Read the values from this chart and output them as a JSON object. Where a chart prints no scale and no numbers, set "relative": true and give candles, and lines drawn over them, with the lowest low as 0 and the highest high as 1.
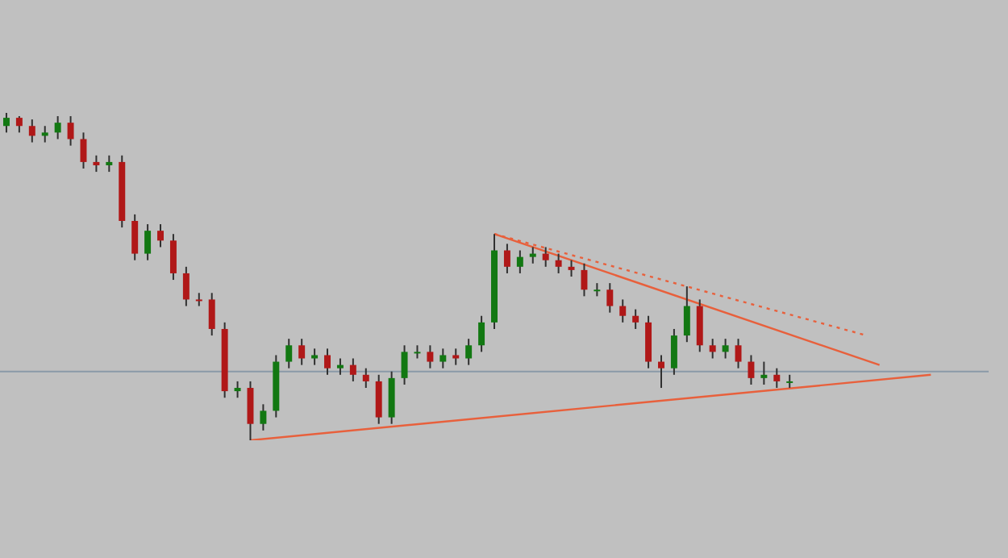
{
  "chart_data": {
    "type": "candlestick",
    "relative": true,
    "categories": [
      null,
      null,
      null,
      null,
      null,
      null,
      null,
      null,
      null,
      null,
      null,
      null,
      null,
      null,
      null,
      null,
      null,
      null,
      null,
      null,
      null,
      null,
      null,
      null,
      null,
      null,
      null,
      null,
      null,
      null,
      null,
      null,
      null,
      null,
      null,
      null,
      null,
      null,
      null,
      null,
      null,
      null,
      null,
      null,
      null,
      null,
      null,
      null,
      null,
      null,
      null,
      null,
      null,
      null,
      null,
      null,
      null,
      null,
      null,
      null,
      null,
      null,
      null,
      null,
      null,
      null,
      null,
      null,
      null,
      null,
      null,
      null,
      null,
      null,
      null,
      null,
      null
    ],
    "ohlc": [
      [
        0.96,
        1,
        0.94,
        0.985
      ],
      [
        0.985,
        0.99,
        0.94,
        0.96
      ],
      [
        0.96,
        0.98,
        0.91,
        0.93
      ],
      [
        0.93,
        0.96,
        0.91,
        0.94
      ],
      [
        0.94,
        0.99,
        0.92,
        0.97
      ],
      [
        0.97,
        0.99,
        0.9,
        0.92
      ],
      [
        0.92,
        0.94,
        0.83,
        0.85
      ],
      [
        0.85,
        0.87,
        0.82,
        0.84
      ],
      [
        0.84,
        0.87,
        0.82,
        0.85
      ],
      [
        0.85,
        0.87,
        0.65,
        0.67
      ],
      [
        0.67,
        0.69,
        0.55,
        0.57
      ],
      [
        0.57,
        0.66,
        0.55,
        0.64
      ],
      [
        0.64,
        0.66,
        0.59,
        0.61
      ],
      [
        0.61,
        0.63,
        0.49,
        0.51
      ],
      [
        0.51,
        0.53,
        0.41,
        0.43
      ],
      [
        0.43,
        0.45,
        0.41,
        0.43
      ],
      [
        0.43,
        0.45,
        0.32,
        0.34
      ],
      [
        0.34,
        0.36,
        0.13,
        0.15
      ],
      [
        0.15,
        0.18,
        0.13,
        0.16
      ],
      [
        0.16,
        0.18,
        0,
        0.05
      ],
      [
        0.05,
        0.11,
        0.03,
        0.09
      ],
      [
        0.09,
        0.26,
        0.07,
        0.24
      ],
      [
        0.24,
        0.31,
        0.22,
        0.29
      ],
      [
        0.29,
        0.31,
        0.23,
        0.25
      ],
      [
        0.25,
        0.28,
        0.23,
        0.26
      ],
      [
        0.26,
        0.28,
        0.2,
        0.22
      ],
      [
        0.22,
        0.25,
        0.2,
        0.23
      ],
      [
        0.23,
        0.25,
        0.18,
        0.2
      ],
      [
        0.2,
        0.22,
        0.16,
        0.18
      ],
      [
        0.18,
        0.2,
        0.05,
        0.07
      ],
      [
        0.07,
        0.21,
        0.05,
        0.19
      ],
      [
        0.19,
        0.29,
        0.17,
        0.27
      ],
      [
        0.27,
        0.29,
        0.25,
        0.27
      ],
      [
        0.27,
        0.29,
        0.22,
        0.24
      ],
      [
        0.24,
        0.28,
        0.22,
        0.26
      ],
      [
        0.26,
        0.28,
        0.23,
        0.25
      ],
      [
        0.25,
        0.31,
        0.23,
        0.29
      ],
      [
        0.29,
        0.38,
        0.27,
        0.36
      ],
      [
        0.36,
        0.63,
        0.34,
        0.58
      ],
      [
        0.58,
        0.6,
        0.51,
        0.53
      ],
      [
        0.53,
        0.58,
        0.51,
        0.56
      ],
      [
        0.56,
        0.59,
        0.54,
        0.57
      ],
      [
        0.57,
        0.59,
        0.53,
        0.55
      ],
      [
        0.55,
        0.57,
        0.51,
        0.53
      ],
      [
        0.53,
        0.55,
        0.5,
        0.52
      ],
      [
        0.52,
        0.54,
        0.44,
        0.46
      ],
      [
        0.46,
        0.48,
        0.44,
        0.46
      ],
      [
        0.46,
        0.48,
        0.39,
        0.41
      ],
      [
        0.41,
        0.43,
        0.36,
        0.38
      ],
      [
        0.38,
        0.4,
        0.34,
        0.36
      ],
      [
        0.36,
        0.38,
        0.22,
        0.24
      ],
      [
        0.24,
        0.26,
        0.16,
        0.22
      ],
      [
        0.22,
        0.34,
        0.2,
        0.32
      ],
      [
        0.32,
        0.47,
        0.3,
        0.41
      ],
      [
        0.41,
        0.43,
        0.27,
        0.29
      ],
      [
        0.29,
        0.31,
        0.25,
        0.27
      ],
      [
        0.27,
        0.31,
        0.25,
        0.29
      ],
      [
        0.29,
        0.31,
        0.22,
        0.24
      ],
      [
        0.24,
        0.26,
        0.17,
        0.19
      ],
      [
        0.19,
        0.24,
        0.17,
        0.2
      ],
      [
        0.2,
        0.22,
        0.16,
        0.18
      ],
      [
        0.18,
        0.2,
        0.16,
        0.18
      ],
      null,
      null,
      null,
      null,
      null,
      null,
      null,
      null,
      null,
      null,
      null,
      null,
      null,
      null,
      null
    ],
    "colors": [
      "#127812",
      "#b01818",
      "#b01818",
      "#127812",
      "#127812",
      "#b01818",
      "#b01818",
      "#b01818",
      "#127812",
      "#b01818",
      "#b01818",
      "#127812",
      "#b01818",
      "#b01818",
      "#b01818",
      "#b01818",
      "#b01818",
      "#b01818",
      "#127812",
      "#b01818",
      "#127812",
      "#127812",
      "#127812",
      "#b01818",
      "#127812",
      "#b01818",
      "#127812",
      "#b01818",
      "#b01818",
      "#b01818",
      "#127812",
      "#127812",
      "#127812",
      "#b01818",
      "#127812",
      "#b01818",
      "#127812",
      "#127812",
      "#127812",
      "#b01818",
      "#127812",
      "#127812",
      "#b01818",
      "#b01818",
      "#b01818",
      "#b01818",
      "#127812",
      "#b01818",
      "#b01818",
      "#b01818",
      "#b01818",
      "#b01818",
      "#127812",
      "#127812",
      "#b01818",
      "#b01818",
      "#127812",
      "#b01818",
      "#b01818",
      "#127812",
      "#b01818",
      "#127812",
      null,
      null,
      null,
      null,
      null,
      null,
      null,
      null,
      null,
      null,
      null,
      null,
      null,
      null,
      null
    ],
    "series": [
      {
        "type": "line",
        "color": "#e8603c",
        "line_style": "solid",
        "values": [
          null,
          null,
          null,
          null,
          null,
          null,
          null,
          null,
          null,
          null,
          null,
          null,
          null,
          null,
          null,
          null,
          null,
          null,
          null,
          0,
          null,
          null,
          null,
          null,
          null,
          null,
          null,
          null,
          null,
          null,
          null,
          null,
          null,
          null,
          null,
          null,
          null,
          null,
          null,
          null,
          null,
          null,
          null,
          null,
          null,
          null,
          null,
          null,
          null,
          null,
          null,
          null,
          null,
          null,
          null,
          null,
          null,
          null,
          null,
          null,
          null,
          null,
          null,
          null,
          null,
          null,
          null,
          null,
          null,
          null,
          null,
          null,
          0.2,
          null,
          null,
          null,
          null
        ]
      },
      {
        "type": "line",
        "color": "#e8603c",
        "line_style": "solid",
        "values": [
          null,
          null,
          null,
          null,
          null,
          null,
          null,
          null,
          null,
          null,
          null,
          null,
          null,
          null,
          null,
          null,
          null,
          null,
          null,
          null,
          null,
          null,
          null,
          null,
          null,
          null,
          null,
          null,
          null,
          null,
          null,
          null,
          null,
          null,
          null,
          null,
          null,
          null,
          0.63,
          null,
          null,
          null,
          null,
          null,
          null,
          null,
          null,
          null,
          null,
          null,
          null,
          null,
          null,
          null,
          null,
          null,
          null,
          null,
          null,
          null,
          null,
          null,
          null,
          null,
          null,
          null,
          null,
          null,
          0.23,
          null,
          null,
          null,
          null,
          null,
          null,
          null,
          null
        ]
      },
      {
        "type": "line",
        "color": "#e8603c",
        "line_style": "dotted",
        "values": [
          null,
          null,
          null,
          null,
          null,
          null,
          null,
          null,
          null,
          null,
          null,
          null,
          null,
          null,
          null,
          null,
          null,
          null,
          null,
          null,
          null,
          null,
          null,
          null,
          null,
          null,
          null,
          null,
          null,
          null,
          null,
          null,
          null,
          null,
          null,
          null,
          null,
          null,
          0.63,
          null,
          null,
          null,
          null,
          null,
          null,
          null,
          null,
          null,
          null,
          null,
          null,
          null,
          null,
          null,
          null,
          null,
          null,
          null,
          null,
          null,
          null,
          null,
          null,
          null,
          null,
          null,
          null,
          0.32,
          null,
          null,
          null,
          null,
          null,
          null,
          null,
          null,
          null
        ]
      }
    ],
    "ref_lines": [
      {
        "axis": "y",
        "value": 0.21,
        "color": "#8a9aa8"
      }
    ]
  }
}
